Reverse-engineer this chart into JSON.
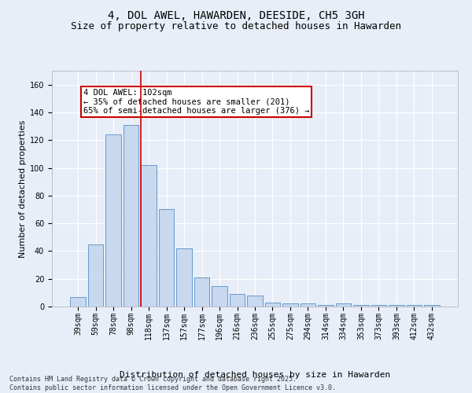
{
  "title": "4, DOL AWEL, HAWARDEN, DEESIDE, CH5 3GH",
  "subtitle": "Size of property relative to detached houses in Hawarden",
  "xlabel": "Distribution of detached houses by size in Hawarden",
  "ylabel": "Number of detached properties",
  "categories": [
    "39sqm",
    "59sqm",
    "78sqm",
    "98sqm",
    "118sqm",
    "137sqm",
    "157sqm",
    "177sqm",
    "196sqm",
    "216sqm",
    "236sqm",
    "255sqm",
    "275sqm",
    "294sqm",
    "314sqm",
    "334sqm",
    "353sqm",
    "373sqm",
    "393sqm",
    "412sqm",
    "432sqm"
  ],
  "bar_values": [
    7,
    45,
    124,
    131,
    102,
    70,
    42,
    21,
    15,
    9,
    8,
    3,
    2,
    2,
    1,
    2,
    1,
    1,
    1,
    1,
    1
  ],
  "bar_color": "#c8d8ee",
  "bar_edge_color": "#6699cc",
  "vline_color": "#cc0000",
  "annotation_text": "4 DOL AWEL: 102sqm\n← 35% of detached houses are smaller (201)\n65% of semi-detached houses are larger (376) →",
  "annotation_box_color": "#ffffff",
  "annotation_box_edge_color": "#cc0000",
  "ylim": [
    0,
    170
  ],
  "background_color": "#e8eef8",
  "grid_color": "#ffffff",
  "footer": "Contains HM Land Registry data © Crown copyright and database right 2025.\nContains public sector information licensed under the Open Government Licence v3.0.",
  "title_fontsize": 10,
  "subtitle_fontsize": 9,
  "axis_label_fontsize": 8,
  "tick_fontsize": 7,
  "footer_fontsize": 6,
  "annotation_fontsize": 7.5
}
